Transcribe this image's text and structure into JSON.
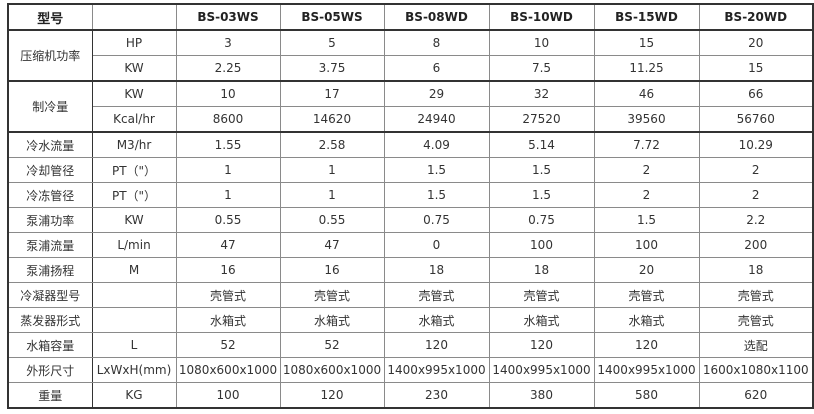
{
  "table": {
    "header": [
      "型号",
      "",
      "BS-03WS",
      "BS-05WS",
      "BS-08WD",
      "BS-10WD",
      "BS-15WD",
      "BS-20WD"
    ],
    "groups": [
      {
        "label": "压缩机功率",
        "rows": [
          {
            "unit": "HP",
            "values": [
              "3",
              "5",
              "8",
              "10",
              "15",
              "20"
            ]
          },
          {
            "unit": "KW",
            "values": [
              "2.25",
              "3.75",
              "6",
              "7.5",
              "11.25",
              "15"
            ]
          }
        ]
      },
      {
        "label": "制冷量",
        "rows": [
          {
            "unit": "KW",
            "values": [
              "10",
              "17",
              "29",
              "32",
              "46",
              "66"
            ]
          },
          {
            "unit": "Kcal/hr",
            "values": [
              "8600",
              "14620",
              "24940",
              "27520",
              "39560",
              "56760"
            ]
          }
        ]
      },
      {
        "label": "冷水流量",
        "rows": [
          {
            "unit": "M3/hr",
            "values": [
              "1.55",
              "2.58",
              "4.09",
              "5.14",
              "7.72",
              "10.29"
            ]
          }
        ]
      },
      {
        "label": "冷却管径",
        "rows": [
          {
            "unit": "PT（\"）",
            "values": [
              "1",
              "1",
              "1.5",
              "1.5",
              "2",
              "2"
            ]
          }
        ]
      },
      {
        "label": "冷冻管径",
        "rows": [
          {
            "unit": "PT（\"）",
            "values": [
              "1",
              "1",
              "1.5",
              "1.5",
              "2",
              "2"
            ]
          }
        ]
      },
      {
        "label": "泵浦功率",
        "rows": [
          {
            "unit": "KW",
            "values": [
              "0.55",
              "0.55",
              "0.75",
              "0.75",
              "1.5",
              "2.2"
            ]
          }
        ]
      },
      {
        "label": "泵浦流量",
        "rows": [
          {
            "unit": "L/min",
            "values": [
              "47",
              "47",
              "0",
              "100",
              "100",
              "200"
            ]
          }
        ]
      },
      {
        "label": "泵浦扬程",
        "rows": [
          {
            "unit": "M",
            "values": [
              "16",
              "16",
              "18",
              "18",
              "20",
              "18"
            ]
          }
        ]
      },
      {
        "label": "冷凝器型号",
        "rows": [
          {
            "unit": "",
            "values": [
              "壳管式",
              "壳管式",
              "壳管式",
              "壳管式",
              "壳管式",
              "壳管式"
            ]
          }
        ]
      },
      {
        "label": "蒸发器形式",
        "rows": [
          {
            "unit": "",
            "values": [
              "水箱式",
              "水箱式",
              "水箱式",
              "水箱式",
              "水箱式",
              "壳管式"
            ]
          }
        ]
      },
      {
        "label": "水箱容量",
        "rows": [
          {
            "unit": "L",
            "values": [
              "52",
              "52",
              "120",
              "120",
              "120",
              "选配"
            ]
          }
        ]
      },
      {
        "label": "外形尺寸",
        "rows": [
          {
            "unit": "LxWxH(mm)",
            "values": [
              "1080x600x1000",
              "1080x600x1000",
              "1400x995x1000",
              "1400x995x1000",
              "1400x995x1000",
              "1600x1080x1100"
            ]
          }
        ]
      },
      {
        "label": "重量",
        "rows": [
          {
            "unit": "KG",
            "values": [
              "100",
              "120",
              "230",
              "380",
              "580",
              "620"
            ]
          }
        ]
      }
    ]
  }
}
